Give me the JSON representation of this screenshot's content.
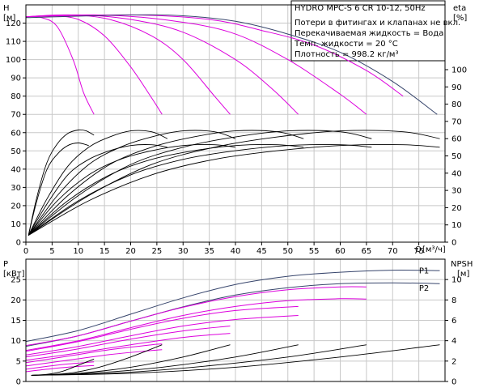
{
  "chart_data": [
    {
      "type": "line",
      "panel": "head-efficiency",
      "title": "HYDRO MPC-S 6 CR 10-12, 50Hz",
      "info_lines": [
        "Потери в фитингах и клапанах не вкл.",
        "Перекачиваемая жидкость = Вода",
        "Темп. жидкости = 20 °C",
        "Плотность = 998.2 кг/м³"
      ],
      "ylabel_left": "H",
      "ylabel_left_unit": "[м]",
      "ylabel_right": "eta",
      "ylabel_right_unit": "[%]",
      "xlabel": "Q",
      "xlabel_unit": "[м³/ч]",
      "xlim": [
        0,
        80
      ],
      "ylim_left": [
        0,
        130
      ],
      "ylim_right": [
        0,
        100
      ],
      "x_ticks": [
        0,
        5,
        10,
        15,
        20,
        25,
        30,
        35,
        40,
        45,
        50,
        55,
        60,
        65,
        70,
        75
      ],
      "y_ticks_left": [
        0,
        10,
        20,
        30,
        40,
        50,
        60,
        70,
        80,
        90,
        100,
        110,
        120
      ],
      "y_ticks_right": [
        0,
        10,
        20,
        30,
        40,
        50,
        60,
        70,
        80,
        90,
        100
      ],
      "grid": true,
      "head_curves": [
        {
          "color": "#dd00dd",
          "x": [
            0,
            3,
            6,
            9,
            11,
            13
          ],
          "y": [
            123.5,
            123,
            118,
            100,
            82,
            70
          ]
        },
        {
          "color": "#dd00dd",
          "x": [
            0,
            5,
            10,
            15,
            20,
            24,
            26
          ],
          "y": [
            123.5,
            124,
            122,
            113,
            96,
            79,
            70
          ]
        },
        {
          "color": "#dd00dd",
          "x": [
            0,
            8,
            16,
            24,
            30,
            36,
            39
          ],
          "y": [
            123.5,
            124.5,
            122,
            113,
            100,
            80,
            70
          ]
        },
        {
          "color": "#dd00dd",
          "x": [
            0,
            10,
            20,
            30,
            40,
            47,
            52
          ],
          "y": [
            123.5,
            124.5,
            122,
            115,
            100,
            84,
            70
          ]
        },
        {
          "color": "#dd00dd",
          "x": [
            0,
            13,
            26,
            39,
            50,
            60,
            65
          ],
          "y": [
            123.5,
            124.5,
            122,
            115,
            100,
            81,
            70
          ]
        },
        {
          "color": "#dd00dd",
          "x": [
            0,
            20,
            35,
            45,
            55,
            65,
            72
          ],
          "y": [
            123.5,
            124.5,
            122,
            116,
            108,
            94,
            80
          ]
        },
        {
          "color": "#36446b",
          "x": [
            0,
            20,
            30,
            40,
            50,
            60,
            70,
            78.5
          ],
          "y": [
            123,
            124.5,
            124,
            121,
            114,
            104,
            88,
            70
          ]
        }
      ],
      "eta_curves": [
        {
          "color": "#000000",
          "x": [
            0.5,
            2,
            4,
            6,
            8,
            10,
            11.5,
            13
          ],
          "y": [
            4,
            25,
            46,
            57,
            63,
            65,
            64.5,
            62
          ]
        },
        {
          "color": "#000000",
          "x": [
            0.5,
            2,
            4,
            6,
            8,
            10,
            12
          ],
          "y": [
            4,
            23,
            42,
            51,
            56,
            57.5,
            56
          ]
        },
        {
          "color": "#000000",
          "x": [
            0.5,
            4,
            8,
            12,
            16,
            20,
            24,
            27
          ],
          "y": [
            4,
            25,
            44,
            55,
            61,
            64.5,
            64,
            60
          ]
        },
        {
          "color": "#000000",
          "x": [
            0.5,
            4,
            8,
            12,
            16,
            20,
            24,
            27
          ],
          "y": [
            4,
            22,
            39,
            48,
            53,
            56,
            56.5,
            55
          ]
        },
        {
          "color": "#000000",
          "x": [
            0.5,
            6,
            12,
            18,
            24,
            30,
            36,
            40
          ],
          "y": [
            4,
            27,
            45,
            55,
            61,
            64.5,
            64,
            60
          ]
        },
        {
          "color": "#000000",
          "x": [
            0.5,
            6,
            12,
            18,
            24,
            30,
            36,
            40
          ],
          "y": [
            4,
            24,
            39,
            48,
            53,
            56,
            56.5,
            55
          ]
        },
        {
          "color": "#000000",
          "x": [
            0.5,
            8,
            16,
            24,
            32,
            40,
            48,
            53
          ],
          "y": [
            4,
            27,
            45,
            55,
            61,
            64.5,
            64,
            60
          ]
        },
        {
          "color": "#000000",
          "x": [
            0.5,
            8,
            16,
            24,
            32,
            40,
            48,
            53
          ],
          "y": [
            4,
            24,
            39,
            48,
            53,
            56,
            56.5,
            55
          ]
        },
        {
          "color": "#000000",
          "x": [
            0.5,
            10,
            20,
            30,
            40,
            50,
            60,
            66
          ],
          "y": [
            4,
            27,
            45,
            55,
            61,
            64.5,
            64,
            60
          ]
        },
        {
          "color": "#000000",
          "x": [
            0.5,
            10,
            20,
            30,
            40,
            50,
            60,
            66
          ],
          "y": [
            4,
            24,
            39,
            48,
            53,
            56,
            56.5,
            55
          ]
        },
        {
          "color": "#000000",
          "x": [
            0.5,
            12,
            24,
            36,
            48,
            60,
            72,
            79
          ],
          "y": [
            4,
            27,
            45,
            55,
            61,
            64.5,
            64,
            60
          ]
        },
        {
          "color": "#000000",
          "x": [
            0.5,
            12,
            24,
            36,
            48,
            60,
            72,
            79
          ],
          "y": [
            4,
            24,
            39,
            48,
            53,
            56,
            56.5,
            55
          ]
        }
      ]
    },
    {
      "type": "line",
      "panel": "power-npsh",
      "ylabel_left": "P",
      "ylabel_left_unit": "[кВт]",
      "ylabel_right": "NPSH",
      "ylabel_right_unit": "[м]",
      "xlim": [
        0,
        80
      ],
      "ylim_left": [
        0,
        30
      ],
      "ylim_right": [
        0,
        12
      ],
      "y_ticks_left": [
        0,
        5,
        10,
        15,
        20,
        25
      ],
      "y_ticks_right": [
        0,
        2,
        4,
        6,
        8,
        10
      ],
      "grid": true,
      "series_labels": [
        {
          "text": "P1",
          "x": 76,
          "y": 27.3
        },
        {
          "text": "P2",
          "x": 76,
          "y": 23.0
        }
      ],
      "power_curves": [
        {
          "color": "#36446b",
          "x": [
            0,
            10,
            20,
            30,
            40,
            50,
            60,
            70,
            79
          ],
          "y": [
            9.8,
            12.5,
            16.5,
            20.5,
            23.8,
            25.8,
            26.8,
            27.3,
            27.2
          ]
        },
        {
          "color": "#36446b",
          "x": [
            0,
            10,
            20,
            30,
            40,
            50,
            60,
            70,
            79
          ],
          "y": [
            8.6,
            11.2,
            14.8,
            18.3,
            21.2,
            23,
            24,
            24.2,
            24
          ]
        },
        {
          "color": "#dd00dd",
          "x": [
            0,
            10,
            20,
            30,
            40,
            50,
            60,
            65
          ],
          "y": [
            8.8,
            11.2,
            14.8,
            18.2,
            20.8,
            22.5,
            23.2,
            23.2
          ]
        },
        {
          "color": "#dd00dd",
          "x": [
            0,
            10,
            20,
            30,
            40,
            50,
            60,
            65
          ],
          "y": [
            7.6,
            10.0,
            13.2,
            16.2,
            18.4,
            19.8,
            20.3,
            20.2
          ]
        },
        {
          "color": "#dd00dd",
          "x": [
            0,
            10,
            20,
            30,
            40,
            52
          ],
          "y": [
            7.4,
            9.8,
            12.8,
            15.5,
            17.4,
            18.4
          ]
        },
        {
          "color": "#dd00dd",
          "x": [
            0,
            10,
            20,
            30,
            40,
            52
          ],
          "y": [
            6.5,
            8.6,
            11.2,
            13.6,
            15.2,
            16.2
          ]
        },
        {
          "color": "#dd00dd",
          "x": [
            0,
            10,
            20,
            30,
            39
          ],
          "y": [
            6.0,
            8.0,
            10.4,
            12.4,
            13.6
          ]
        },
        {
          "color": "#dd00dd",
          "x": [
            0,
            10,
            20,
            30,
            39
          ],
          "y": [
            5.2,
            7.0,
            9.0,
            10.8,
            11.8
          ]
        },
        {
          "color": "#dd00dd",
          "x": [
            0,
            8,
            16,
            24,
            26
          ],
          "y": [
            4.6,
            6.2,
            7.8,
            9.0,
            9.2
          ]
        },
        {
          "color": "#dd00dd",
          "x": [
            0,
            8,
            16,
            24,
            26
          ],
          "y": [
            3.8,
            5.2,
            6.6,
            7.6,
            7.8
          ]
        },
        {
          "color": "#dd00dd",
          "x": [
            0,
            4,
            8,
            13
          ],
          "y": [
            3.0,
            3.7,
            4.3,
            4.8
          ]
        },
        {
          "color": "#dd00dd",
          "x": [
            0,
            4,
            8,
            13
          ],
          "y": [
            2.4,
            3.0,
            3.5,
            3.9
          ]
        }
      ],
      "npsh_curves": [
        {
          "color": "#000000",
          "x": [
            1,
            4,
            7,
            10,
            13
          ],
          "y": [
            0.6,
            0.7,
            1.0,
            1.6,
            2.2
          ]
        },
        {
          "color": "#000000",
          "x": [
            1,
            8,
            14,
            20,
            26
          ],
          "y": [
            0.6,
            0.8,
            1.4,
            2.4,
            3.6
          ]
        },
        {
          "color": "#000000",
          "x": [
            1,
            10,
            20,
            30,
            39
          ],
          "y": [
            0.6,
            0.8,
            1.4,
            2.4,
            3.6
          ]
        },
        {
          "color": "#000000",
          "x": [
            1,
            12,
            26,
            40,
            52
          ],
          "y": [
            0.6,
            0.8,
            1.4,
            2.4,
            3.6
          ]
        },
        {
          "color": "#000000",
          "x": [
            1,
            16,
            32,
            50,
            65
          ],
          "y": [
            0.6,
            0.8,
            1.4,
            2.4,
            3.6
          ]
        },
        {
          "color": "#000000",
          "x": [
            1,
            20,
            40,
            60,
            79
          ],
          "y": [
            0.6,
            0.8,
            1.4,
            2.4,
            3.6
          ]
        }
      ]
    }
  ]
}
